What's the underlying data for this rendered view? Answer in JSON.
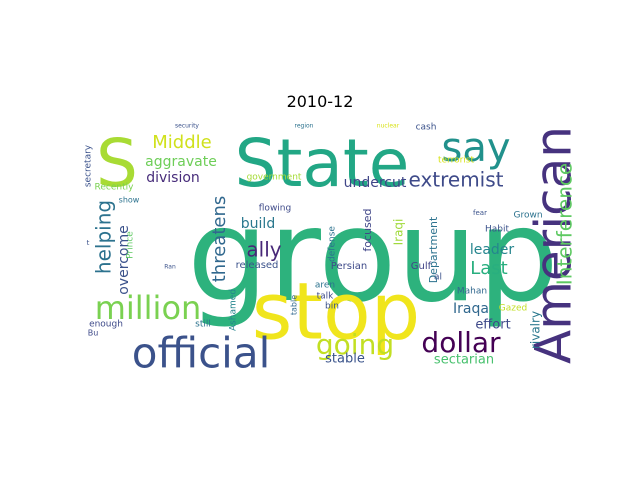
{
  "chart_data": {
    "type": "wordcloud",
    "title": "2010-12",
    "words": [
      {
        "text": "group",
        "weight": 100,
        "color": "#2db27d",
        "rotate": false
      },
      {
        "text": "stop",
        "weight": 70,
        "color": "#f0e51c",
        "rotate": false
      },
      {
        "text": "State",
        "weight": 56,
        "color": "#22a785",
        "rotate": false
      },
      {
        "text": "American",
        "weight": 50,
        "color": "#46327e",
        "rotate": true
      },
      {
        "text": "S",
        "weight": 50,
        "color": "#a8db34",
        "rotate": false
      },
      {
        "text": "official",
        "weight": 38,
        "color": "#3b528b",
        "rotate": false
      },
      {
        "text": "say",
        "weight": 34,
        "color": "#21918c",
        "rotate": false
      },
      {
        "text": "million",
        "weight": 30,
        "color": "#7ad151",
        "rotate": false
      },
      {
        "text": "dollar",
        "weight": 26,
        "color": "#440154",
        "rotate": false
      },
      {
        "text": "going",
        "weight": 26,
        "color": "#c2df23",
        "rotate": false
      },
      {
        "text": "Interference",
        "weight": 16,
        "color": "#5ec962",
        "rotate": true
      },
      {
        "text": "extremist",
        "weight": 18,
        "color": "#3e4a89",
        "rotate": false
      },
      {
        "text": "Middle",
        "weight": 16,
        "color": "#d0e11c",
        "rotate": false
      },
      {
        "text": "Last",
        "weight": 16,
        "color": "#29af7f",
        "rotate": false
      },
      {
        "text": "helping",
        "weight": 16,
        "color": "#2c728e",
        "rotate": true
      },
      {
        "text": "threatens",
        "weight": 16,
        "color": "#31688e",
        "rotate": true
      },
      {
        "text": "ally",
        "weight": 18,
        "color": "#482878",
        "rotate": false
      },
      {
        "text": "aggravate",
        "weight": 12,
        "color": "#6ece58",
        "rotate": false
      },
      {
        "text": "division",
        "weight": 12,
        "color": "#472c7a",
        "rotate": false
      },
      {
        "text": "undercut",
        "weight": 12,
        "color": "#404688",
        "rotate": false
      },
      {
        "text": "Iraqa",
        "weight": 12,
        "color": "#31688e",
        "rotate": false
      },
      {
        "text": "build",
        "weight": 12,
        "color": "#2a788e",
        "rotate": false
      },
      {
        "text": "overcome",
        "weight": 12,
        "color": "#3b528b",
        "rotate": true
      },
      {
        "text": "leader",
        "weight": 12,
        "color": "#25858e",
        "rotate": false
      },
      {
        "text": "effort",
        "weight": 12,
        "color": "#3e4989",
        "rotate": false
      },
      {
        "text": "sectarian",
        "weight": 12,
        "color": "#48c16e",
        "rotate": false
      },
      {
        "text": "stable",
        "weight": 12,
        "color": "#3a538b",
        "rotate": false
      },
      {
        "text": "rivalry",
        "weight": 11,
        "color": "#2a788e",
        "rotate": true
      },
      {
        "text": "Iraqi",
        "weight": 11,
        "color": "#9fda3a",
        "rotate": true
      },
      {
        "text": "Department",
        "weight": 10,
        "color": "#2c728e",
        "rotate": true
      },
      {
        "text": "focused",
        "weight": 10,
        "color": "#404688",
        "rotate": true
      },
      {
        "text": "Persian",
        "weight": 9,
        "color": "#3e4a89",
        "rotate": false
      },
      {
        "text": "Gulf",
        "weight": 9,
        "color": "#414487",
        "rotate": false
      },
      {
        "text": "released",
        "weight": 9,
        "color": "#3b528b",
        "rotate": false
      },
      {
        "text": "Mahan",
        "weight": 8,
        "color": "#31688e",
        "rotate": false
      },
      {
        "text": "Grown",
        "weight": 8,
        "color": "#2c728e",
        "rotate": false
      },
      {
        "text": "Habit",
        "weight": 8,
        "color": "#3b528b",
        "rotate": false
      },
      {
        "text": "Gazed",
        "weight": 8,
        "color": "#c2df23",
        "rotate": false
      },
      {
        "text": "Ashamed",
        "weight": 8,
        "color": "#25858e",
        "rotate": true
      },
      {
        "text": "flowing",
        "weight": 8,
        "color": "#3e4a89",
        "rotate": false
      },
      {
        "text": "government",
        "weight": 8,
        "color": "#a5db36",
        "rotate": false
      },
      {
        "text": "terrorist",
        "weight": 8,
        "color": "#d8e219",
        "rotate": false
      },
      {
        "text": "cash",
        "weight": 8,
        "color": "#3b528b",
        "rotate": false
      },
      {
        "text": "defense",
        "weight": 8,
        "color": "#2c728e",
        "rotate": true
      },
      {
        "text": "talk",
        "weight": 8,
        "color": "#3e4a89",
        "rotate": false
      },
      {
        "text": "aren",
        "weight": 8,
        "color": "#2c728e",
        "rotate": false
      },
      {
        "text": "bin",
        "weight": 8,
        "color": "#3b528b",
        "rotate": false
      },
      {
        "text": "table",
        "weight": 7,
        "color": "#31688e",
        "rotate": true
      },
      {
        "text": "still",
        "weight": 8,
        "color": "#2c728e",
        "rotate": false
      },
      {
        "text": "enough",
        "weight": 8,
        "color": "#3e4a89",
        "rotate": false
      },
      {
        "text": "Prince",
        "weight": 8,
        "color": "#5ec962",
        "rotate": true
      },
      {
        "text": "secretary",
        "weight": 8,
        "color": "#3b528b",
        "rotate": true
      },
      {
        "text": "Recently",
        "weight": 8,
        "color": "#7ad151",
        "rotate": false
      },
      {
        "text": "show",
        "weight": 7,
        "color": "#2c728e",
        "rotate": false
      },
      {
        "text": "al",
        "weight": 8,
        "color": "#3b528b",
        "rotate": false
      },
      {
        "text": "fear",
        "weight": 6,
        "color": "#3b528b",
        "rotate": false
      },
      {
        "text": "Bu",
        "weight": 7,
        "color": "#3e4a89",
        "rotate": false
      },
      {
        "text": "Ran",
        "weight": 5,
        "color": "#3b528b",
        "rotate": false
      },
      {
        "text": "security",
        "weight": 5,
        "color": "#3b528b",
        "rotate": false
      },
      {
        "text": "region",
        "weight": 5,
        "color": "#2c728e",
        "rotate": false
      },
      {
        "text": "nuclear",
        "weight": 5,
        "color": "#d8e219",
        "rotate": false
      },
      {
        "text": "t",
        "weight": 6,
        "color": "#3b528b",
        "rotate": false
      }
    ]
  }
}
